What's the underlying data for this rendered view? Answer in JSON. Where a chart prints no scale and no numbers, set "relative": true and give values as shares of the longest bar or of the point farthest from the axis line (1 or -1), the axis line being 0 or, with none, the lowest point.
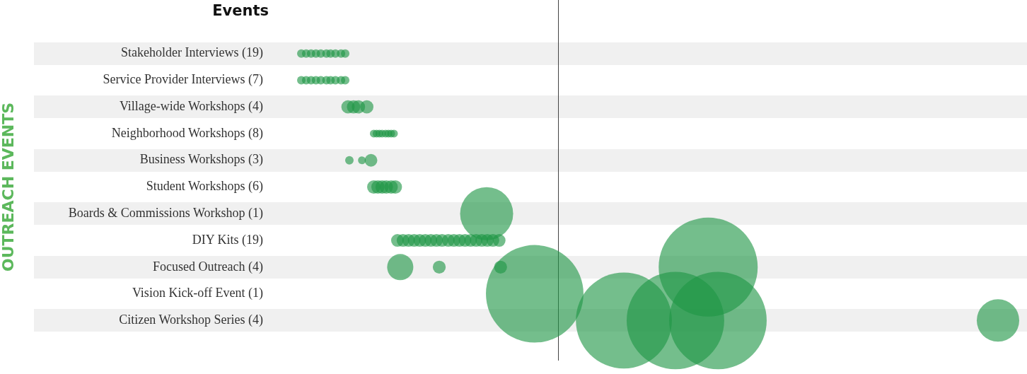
{
  "chart_data": {
    "type": "bubble",
    "title": "Events",
    "ylabel": "OUTREACH EVENTS",
    "orientation": "horizontal",
    "relative": true,
    "categories": [
      "Stakeholder Interviews (19)",
      "Service Provider Interviews (7)",
      "Village-wide Workshops (4)",
      "Neighborhood Workshops (8)",
      "Business Workshops (3)",
      "Student Workshops (6)",
      "Boards & Commissions Workshop (1)",
      "DIY Kits (19)",
      "Focused Outreach (4)",
      "Vision Kick-off Event (1)",
      "Citizen Workshop Series (4)"
    ],
    "series": [
      {
        "color": "#1e9646",
        "x": [
          "Stakeholder Interviews (19)",
          "Stakeholder Interviews (19)",
          "Stakeholder Interviews (19)",
          "Stakeholder Interviews (19)",
          "Stakeholder Interviews (19)",
          "Stakeholder Interviews (19)",
          "Stakeholder Interviews (19)",
          "Stakeholder Interviews (19)",
          "Stakeholder Interviews (19)",
          "Stakeholder Interviews (19)"
        ],
        "values": [
          0,
          0.007,
          0.014,
          0.021,
          0.028,
          0.036,
          0.042,
          0.049,
          0.057,
          0.063
        ],
        "sizes": [
          0.0073,
          0.0073,
          0.0073,
          0.0073,
          0.0073,
          0.0073,
          0.0073,
          0.0073,
          0.0073,
          0.0073
        ]
      },
      {
        "color": "#1e9646",
        "x": [
          "Service Provider Interviews (7)",
          "Service Provider Interviews (7)",
          "Service Provider Interviews (7)",
          "Service Provider Interviews (7)",
          "Service Provider Interviews (7)",
          "Service Provider Interviews (7)",
          "Service Provider Interviews (7)",
          "Service Provider Interviews (7)",
          "Service Provider Interviews (7)",
          "Service Provider Interviews (7)"
        ],
        "values": [
          0,
          0.007,
          0.014,
          0.021,
          0.028,
          0.036,
          0.042,
          0.049,
          0.057,
          0.063
        ],
        "sizes": [
          0.0073,
          0.0073,
          0.0073,
          0.0073,
          0.0073,
          0.0073,
          0.0073,
          0.0073,
          0.0073,
          0.0073
        ]
      },
      {
        "color": "#1e9646",
        "x": [
          "Village-wide Workshops (4)",
          "Village-wide Workshops (4)",
          "Village-wide Workshops (4)",
          "Village-wide Workshops (4)"
        ],
        "values": [
          0.067,
          0.075,
          0.082,
          0.094
        ],
        "sizes": [
          0.018,
          0.018,
          0.018,
          0.018
        ]
      },
      {
        "color": "#1e9646",
        "x": [
          "Neighborhood Workshops (8)",
          "Neighborhood Workshops (8)",
          "Neighborhood Workshops (8)",
          "Neighborhood Workshops (8)",
          "Neighborhood Workshops (8)",
          "Neighborhood Workshops (8)",
          "Neighborhood Workshops (8)",
          "Neighborhood Workshops (8)"
        ],
        "values": [
          0.104,
          0.108,
          0.112,
          0.116,
          0.121,
          0.125,
          0.129,
          0.133
        ],
        "sizes": [
          0.0062,
          0.0062,
          0.0062,
          0.0062,
          0.0062,
          0.0062,
          0.0062,
          0.0062
        ]
      },
      {
        "color": "#1e9646",
        "x": [
          "Business Workshops (3)",
          "Business Workshops (3)",
          "Business Workshops (3)"
        ],
        "values": [
          0.069,
          0.087,
          0.1
        ],
        "sizes": [
          0.0073,
          0.0062,
          0.0165
        ]
      },
      {
        "color": "#1e9646",
        "x": [
          "Student Workshops (6)",
          "Student Workshops (6)",
          "Student Workshops (6)",
          "Student Workshops (6)",
          "Student Workshops (6)",
          "Student Workshops (6)"
        ],
        "values": [
          0.104,
          0.11,
          0.116,
          0.122,
          0.129,
          0.135
        ],
        "sizes": [
          0.018,
          0.018,
          0.018,
          0.018,
          0.018,
          0.018
        ]
      },
      {
        "color": "#1e9646",
        "x": [
          "Boards & Commissions Workshop (1)"
        ],
        "values": [
          0.266
        ],
        "sizes": [
          0.287
        ]
      },
      {
        "color": "#1e9646",
        "x": [
          "DIY Kits (19)",
          "DIY Kits (19)",
          "DIY Kits (19)",
          "DIY Kits (19)",
          "DIY Kits (19)",
          "DIY Kits (19)",
          "DIY Kits (19)",
          "DIY Kits (19)",
          "DIY Kits (19)",
          "DIY Kits (19)",
          "DIY Kits (19)",
          "DIY Kits (19)",
          "DIY Kits (19)",
          "DIY Kits (19)",
          "DIY Kits (19)",
          "DIY Kits (19)",
          "DIY Kits (19)",
          "DIY Kits (19)",
          "DIY Kits (19)"
        ],
        "values": [
          0.138,
          0.146,
          0.154,
          0.162,
          0.17,
          0.178,
          0.186,
          0.194,
          0.202,
          0.211,
          0.219,
          0.227,
          0.235,
          0.243,
          0.251,
          0.259,
          0.267,
          0.275,
          0.284
        ],
        "sizes": [
          0.0165,
          0.0165,
          0.0165,
          0.0165,
          0.0165,
          0.0165,
          0.0165,
          0.0165,
          0.0165,
          0.0165,
          0.0165,
          0.0165,
          0.0165,
          0.0165,
          0.0165,
          0.0165,
          0.0165,
          0.0165,
          0.0165
        ]
      },
      {
        "color": "#1e9646",
        "x": [
          "Focused Outreach (4)",
          "Focused Outreach (4)",
          "Focused Outreach (4)",
          "Focused Outreach (4)"
        ],
        "values": [
          0.142,
          0.198,
          0.286,
          0.584
        ],
        "sizes": [
          0.07,
          0.017,
          0.017,
          1
        ]
      },
      {
        "color": "#1e9646",
        "x": [
          "Vision Kick-off Event (1)"
        ],
        "values": [
          0.335
        ],
        "sizes": [
          0.97
        ]
      },
      {
        "color": "#1e9646",
        "x": [
          "Citizen Workshop Series (4)",
          "Citizen Workshop Series (4)",
          "Citizen Workshop Series (4)",
          "Citizen Workshop Series (4)"
        ],
        "values": [
          0.463,
          0.537,
          0.598,
          1
        ],
        "sizes": [
          0.94,
          0.97,
          0.97,
          0.184
        ]
      }
    ],
    "ref_lines": [
      {
        "axis": "x",
        "value": 0.369,
        "color": "#444444",
        "line_style": "solid"
      }
    ],
    "legend": false,
    "tick_labels": "y"
  }
}
